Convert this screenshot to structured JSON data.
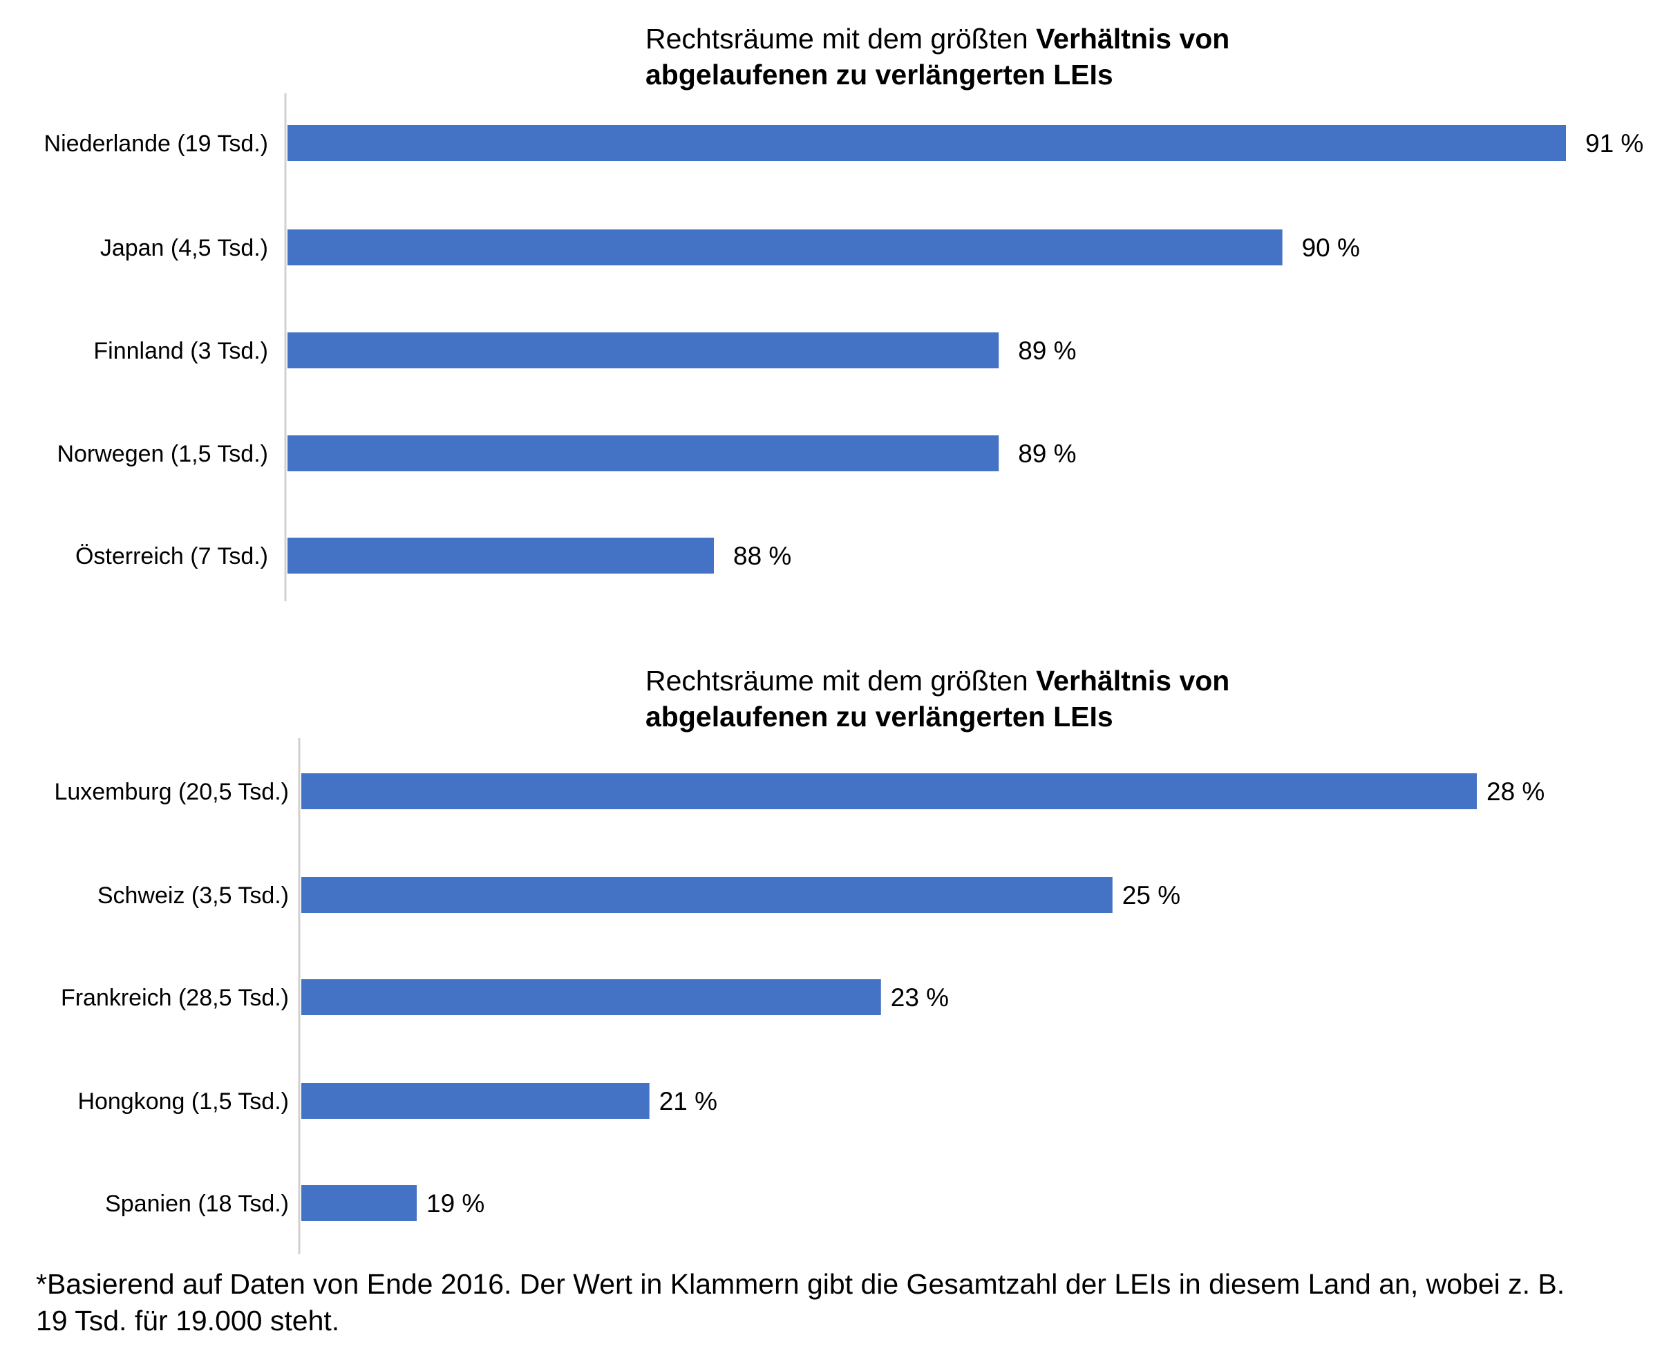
{
  "chart_data": [
    {
      "type": "bar",
      "orientation": "horizontal",
      "title_normal": "Rechtsräume mit dem größten ",
      "title_bold_1": "Verhältnis von",
      "title_bold_2": "abgelaufenen zu verlängerten LEIs",
      "categories": [
        "Niederlande (19 Tsd.)",
        "Japan (4,5 Tsd.)",
        "Finnland (3 Tsd.)",
        "Norwegen (1,5 Tsd.)",
        "Österreich (7 Tsd.)"
      ],
      "values": [
        91,
        90,
        89,
        89,
        88
      ],
      "value_labels": [
        "91 %",
        "90 %",
        "89 %",
        "89 %",
        "88 %"
      ],
      "bar_widths_relative": [
        1.0,
        0.778,
        0.556,
        0.556,
        0.333
      ],
      "color": "#4472C4",
      "grid": false,
      "legend": "none"
    },
    {
      "type": "bar",
      "orientation": "horizontal",
      "title_normal": "Rechtsräume mit dem größten ",
      "title_bold_1": "Verhältnis von",
      "title_bold_2": "abgelaufenen zu verlängerten LEIs",
      "categories": [
        "Luxemburg (20,5 Tsd.)",
        "Schweiz (3,5 Tsd.)",
        "Frankreich (28,5 Tsd.)",
        "Hongkong (1,5 Tsd.)",
        "Spanien (18 Tsd.)"
      ],
      "values": [
        28,
        25,
        23,
        21,
        19
      ],
      "value_labels": [
        "28 %",
        "25 %",
        "23 %",
        "21 %",
        "19 %"
      ],
      "bar_widths_relative": [
        1.0,
        0.69,
        0.493,
        0.296,
        0.098
      ],
      "color": "#4472C4",
      "grid": false,
      "legend": "none"
    }
  ],
  "footnote": {
    "line1": "*Basierend auf Daten von Ende 2016. Der Wert in Klammern gibt die Gesamtzahl der LEIs in diesem Land an, wobei z. B.",
    "line2": "19 Tsd. für 19.000 steht."
  }
}
